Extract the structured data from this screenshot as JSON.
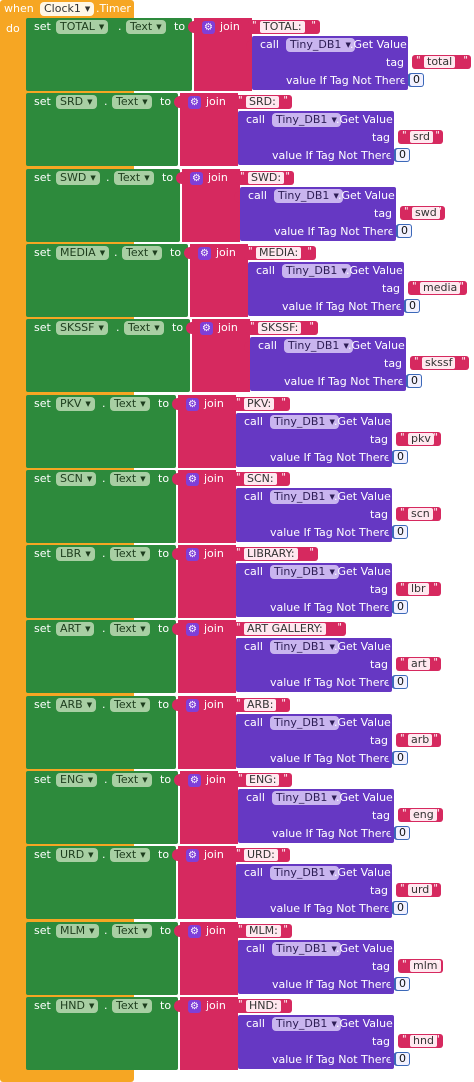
{
  "event": {
    "when_label": "when",
    "component": "Clock1",
    "event_name": ".Timer",
    "do_label": "do"
  },
  "block_labels": {
    "set": "set",
    "dot": ".",
    "to": "to",
    "join": "join",
    "call": "call",
    "get_value": ".Get Value",
    "tag": "tag",
    "value_if_not_there": "value If Tag Not There",
    "quote": "\""
  },
  "db_component": "Tiny_DB1",
  "property": "Text",
  "rows": [
    {
      "component": "TOTAL",
      "prefix": "TOTAL:",
      "tag": "total",
      "default": "0"
    },
    {
      "component": "SRD",
      "prefix": "SRD:",
      "tag": "srd",
      "default": "0"
    },
    {
      "component": "SWD",
      "prefix": "SWD:",
      "tag": "swd",
      "default": "0"
    },
    {
      "component": "MEDIA",
      "prefix": "MEDIA:",
      "tag": "media",
      "default": "0"
    },
    {
      "component": "SKSSF",
      "prefix": "SKSSF:",
      "tag": "skssf",
      "default": "0"
    },
    {
      "component": "PKV",
      "prefix": "PKV:",
      "tag": "pkv",
      "default": "0"
    },
    {
      "component": "SCN",
      "prefix": "SCN:",
      "tag": "scn",
      "default": "0"
    },
    {
      "component": "LBR",
      "prefix": "LIBRARY:",
      "tag": "lbr",
      "default": "0"
    },
    {
      "component": "ART",
      "prefix": "ART GALLERY:",
      "tag": "art",
      "default": "0"
    },
    {
      "component": "ARB",
      "prefix": "ARB:",
      "tag": "arb",
      "default": "0"
    },
    {
      "component": "ENG",
      "prefix": "ENG:",
      "tag": "eng",
      "default": "0"
    },
    {
      "component": "URD",
      "prefix": "URD:",
      "tag": "urd",
      "default": "0"
    },
    {
      "component": "MLM",
      "prefix": "MLM:",
      "tag": "mlm",
      "default": "0"
    },
    {
      "component": "HND",
      "prefix": "HND:",
      "tag": "hnd",
      "default": "0"
    }
  ],
  "colors": {
    "event": "#f6a623",
    "setter": "#2d8a3c",
    "text_join": "#d6295f",
    "procedure_call": "#6638c3"
  },
  "icons": {
    "gear": "gear-icon",
    "dropdown": "chevron-down-icon"
  }
}
